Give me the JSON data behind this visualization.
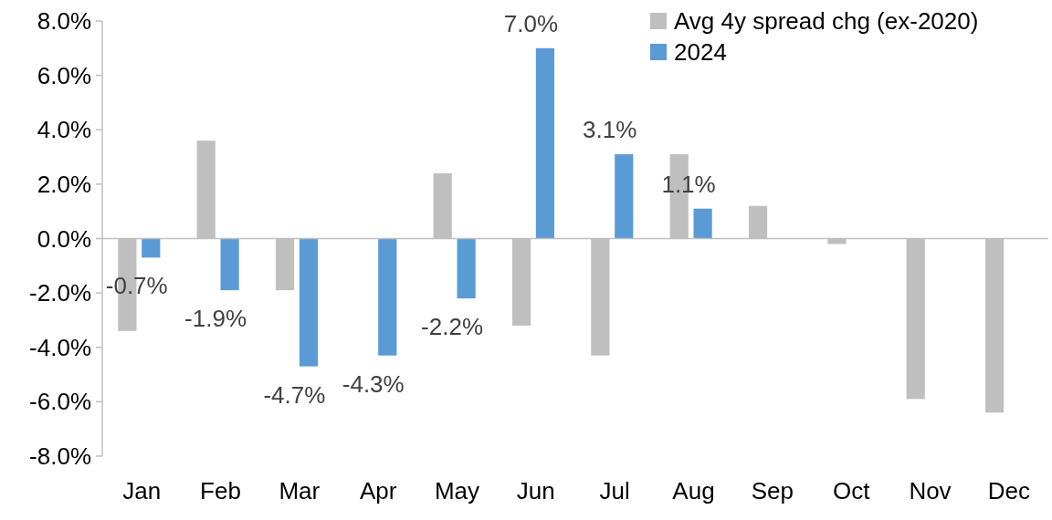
{
  "chart_data": {
    "type": "bar",
    "categories": [
      "Jan",
      "Feb",
      "Mar",
      "Apr",
      "May",
      "Jun",
      "Jul",
      "Aug",
      "Sep",
      "Oct",
      "Nov",
      "Dec"
    ],
    "series": [
      {
        "name": "Avg 4y spread chg (ex-2020)",
        "color": "#bfbfbf",
        "values": [
          -3.4,
          3.6,
          -1.9,
          null,
          2.4,
          -3.2,
          -4.3,
          3.1,
          1.2,
          -0.2,
          -5.9,
          -6.4
        ]
      },
      {
        "name": "2024",
        "color": "#5b9bd5",
        "values": [
          -0.7,
          -1.9,
          -4.7,
          -4.3,
          -2.2,
          7.0,
          3.1,
          1.1,
          null,
          null,
          null,
          null
        ],
        "value_labels": [
          "-0.7%",
          "-1.9%",
          "-4.7%",
          "-4.3%",
          "-2.2%",
          "7.0%",
          "3.1%",
          "1.1%",
          null,
          null,
          null,
          null
        ]
      }
    ],
    "ylim": [
      -8,
      8
    ],
    "yticks": [
      {
        "value": -8,
        "label": "-8.0%"
      },
      {
        "value": -6,
        "label": "-6.0%"
      },
      {
        "value": -4,
        "label": "-4.0%"
      },
      {
        "value": -2,
        "label": "-2.0%"
      },
      {
        "value": 0,
        "label": "0.0%"
      },
      {
        "value": 2,
        "label": "2.0%"
      },
      {
        "value": 4,
        "label": "4.0%"
      },
      {
        "value": 6,
        "label": "6.0%"
      },
      {
        "value": 8,
        "label": "8.0%"
      }
    ],
    "legend": "top right"
  }
}
